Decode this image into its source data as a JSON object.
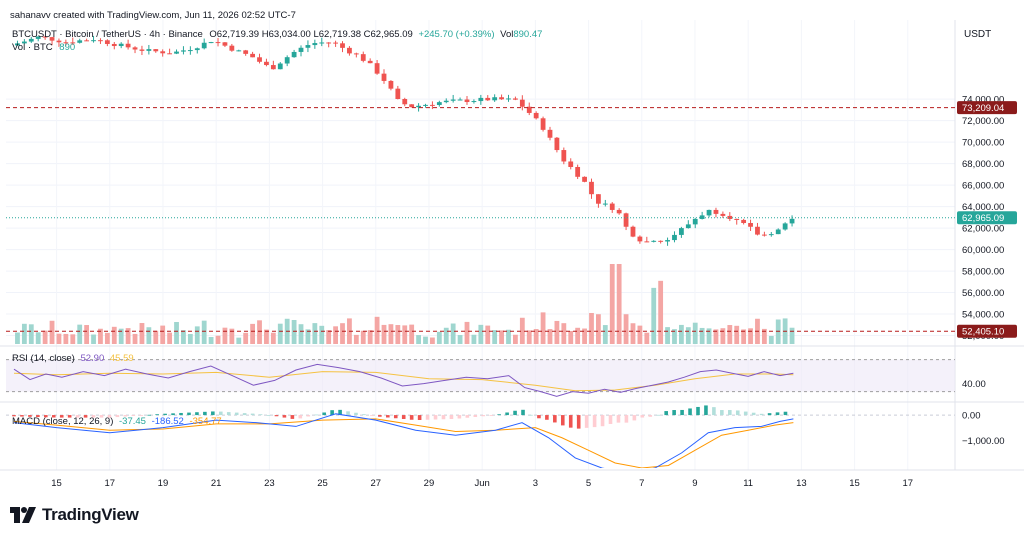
{
  "header": {
    "created": "sahanavv created with TradingView.com, Jun 11, 2026 02:52 UTC-7",
    "symbol_line": "BTCUSDT · Bitcoin / TetherUS · 4h · Binance",
    "ohlc": "O62,719.39 H63,034.00 L62,719.38 C62,965.09",
    "change": "+245.70 (+0.39%)",
    "vol_label": "Vol",
    "vol_value": "890.47",
    "vol_btc_label": "Vol · BTC",
    "vol_btc_value": "890",
    "currency": "USDT"
  },
  "rsi_panel": {
    "label": "RSI (14, close)",
    "value1": "52.90",
    "value2": "45.59",
    "axis_label": "40.00"
  },
  "macd_panel": {
    "label": "MACD (close, 12, 26, 9)",
    "value1": "-37.45",
    "value2": "-186.52",
    "value3": "-354.77",
    "axis_labels": [
      "0.00",
      "−1,000.00"
    ]
  },
  "price_badges": {
    "current": "62,965.09",
    "resistance": "73,209.04",
    "support": "52,405.10"
  },
  "brand": {
    "text": "TradingView"
  },
  "colors": {
    "up": "#26a69a",
    "down": "#ef5350",
    "vol_up": "#9fd6cf",
    "vol_down": "#f4a6a4",
    "channel": "#5b8ee6",
    "resistance_line": "#b71c1c",
    "support_line": "#b71c1c",
    "current_price": "#26a69a",
    "rsi_line": "#7e57c2",
    "rsi_ma": "#f5c242",
    "macd_line": "#2962ff",
    "signal_line": "#ff9800"
  },
  "chart_data": {
    "type": "candlestick",
    "timeframe": "4h",
    "x_tick_labels": [
      "15",
      "17",
      "19",
      "21",
      "23",
      "25",
      "27",
      "29",
      "Jun",
      "3",
      "5",
      "7",
      "9",
      "11",
      "13",
      "15",
      "17"
    ],
    "price_axis_ticks": [
      74000,
      72000,
      70000,
      68000,
      66000,
      64000,
      62000,
      60000,
      58000,
      56000,
      54000,
      52000
    ],
    "price_axis_labels": [
      "74,000.00",
      "72,000.00",
      "70,000.00",
      "68,000.00",
      "66,000.00",
      "64,000.00",
      "62,000.00",
      "60,000.00",
      "58,000.00",
      "56,000.00",
      "54,000.00",
      "52,000.00"
    ],
    "ylim": [
      51400,
      79500
    ],
    "horizontal_levels": [
      73209.04,
      52405.1
    ],
    "current_price": 62965.09,
    "channel": {
      "upper": {
        "start": [
          3.6,
          64000
        ],
        "end": [
          12.7,
          65900
        ]
      },
      "middle": {
        "start": [
          3.6,
          60200
        ],
        "end": [
          12.7,
          64000
        ]
      },
      "lower": {
        "start": [
          3.6,
          58200
        ],
        "end": [
          12.7,
          61800
        ]
      }
    },
    "close_path": [
      [
        13.4,
        79000
      ],
      [
        14.5,
        79800
      ],
      [
        15.5,
        79300
      ],
      [
        16.5,
        79600
      ],
      [
        17.5,
        79000
      ],
      [
        18.5,
        78500
      ],
      [
        19.5,
        78300
      ],
      [
        20.3,
        78800
      ],
      [
        21,
        79500
      ],
      [
        21.7,
        78700
      ],
      [
        22.5,
        77900
      ],
      [
        23.2,
        76800
      ],
      [
        24,
        78300
      ],
      [
        24.7,
        79200
      ],
      [
        25.5,
        79300
      ],
      [
        26,
        78600
      ],
      [
        26.5,
        78000
      ],
      [
        27,
        77000
      ],
      [
        27.5,
        75600
      ],
      [
        28,
        73700
      ],
      [
        28.5,
        73300
      ],
      [
        29,
        73500
      ],
      [
        29.5,
        73700
      ],
      [
        30,
        73800
      ],
      [
        31.5,
        74000
      ],
      [
        32.4,
        73900
      ],
      [
        33,
        72500
      ],
      [
        33.4,
        71400
      ],
      [
        33.8,
        69800
      ],
      [
        34.2,
        68300
      ],
      [
        34.6,
        67300
      ],
      [
        35,
        66200
      ],
      [
        35.4,
        64500
      ],
      [
        35.8,
        64100
      ],
      [
        36.2,
        63700
      ],
      [
        36.6,
        61800
      ],
      [
        37,
        61000
      ],
      [
        37.3,
        60700
      ],
      [
        37.6,
        61000
      ],
      [
        38,
        60700
      ],
      [
        38.4,
        61500
      ],
      [
        38.8,
        62200
      ],
      [
        39.2,
        63000
      ],
      [
        39.6,
        63600
      ],
      [
        40,
        63500
      ],
      [
        40.4,
        63100
      ],
      [
        40.8,
        62500
      ],
      [
        41.2,
        62000
      ],
      [
        41.6,
        61200
      ],
      [
        42,
        61600
      ],
      [
        42.4,
        62000
      ],
      [
        42.7,
        62965
      ]
    ],
    "rsi": {
      "ylim": [
        22,
        82
      ],
      "bands": [
        70,
        30
      ],
      "points": [
        [
          13.4,
          58
        ],
        [
          14,
          45
        ],
        [
          14.6,
          52
        ],
        [
          15.2,
          48
        ],
        [
          16,
          55
        ],
        [
          16.8,
          50
        ],
        [
          17.6,
          58
        ],
        [
          18.4,
          52
        ],
        [
          19.2,
          47
        ],
        [
          20,
          55
        ],
        [
          20.8,
          62
        ],
        [
          21.6,
          50
        ],
        [
          22.4,
          38
        ],
        [
          23.2,
          44
        ],
        [
          24,
          57
        ],
        [
          24.8,
          64
        ],
        [
          25.6,
          60
        ],
        [
          26.4,
          55
        ],
        [
          27.2,
          47
        ],
        [
          28,
          37
        ],
        [
          28.8,
          40
        ],
        [
          29.6,
          44
        ],
        [
          30.4,
          48
        ],
        [
          31.2,
          46
        ],
        [
          32,
          50
        ],
        [
          32.6,
          35
        ],
        [
          33.2,
          30
        ],
        [
          33.8,
          24
        ],
        [
          34.4,
          30
        ],
        [
          35,
          28
        ],
        [
          35.6,
          33
        ],
        [
          36.2,
          29
        ],
        [
          36.8,
          34
        ],
        [
          37.4,
          38
        ],
        [
          38,
          42
        ],
        [
          38.6,
          48
        ],
        [
          39.2,
          55
        ],
        [
          39.8,
          57
        ],
        [
          40.4,
          53
        ],
        [
          41,
          49
        ],
        [
          41.6,
          55
        ],
        [
          42.2,
          50
        ],
        [
          42.7,
          53
        ]
      ],
      "ma_points": [
        [
          13.4,
          53
        ],
        [
          15,
          51
        ],
        [
          17,
          53
        ],
        [
          19,
          52
        ],
        [
          21,
          54
        ],
        [
          23,
          48
        ],
        [
          25,
          55
        ],
        [
          27,
          54
        ],
        [
          29,
          46
        ],
        [
          31,
          45
        ],
        [
          33,
          38
        ],
        [
          34.5,
          31
        ],
        [
          36,
          32
        ],
        [
          37.5,
          38
        ],
        [
          39,
          46
        ],
        [
          40.5,
          52
        ],
        [
          42,
          52
        ],
        [
          42.7,
          51
        ]
      ]
    },
    "macd": {
      "ylim": [
        -2100,
        400
      ],
      "zero": 0,
      "macd_line": [
        [
          13.4,
          -300
        ],
        [
          15,
          -500
        ],
        [
          17,
          -700
        ],
        [
          19,
          -500
        ],
        [
          21,
          -200
        ],
        [
          22.5,
          -300
        ],
        [
          24,
          -450
        ],
        [
          25.5,
          50
        ],
        [
          27,
          -200
        ],
        [
          28.5,
          -600
        ],
        [
          30,
          -800
        ],
        [
          31.5,
          -600
        ],
        [
          32.5,
          -300
        ],
        [
          33.5,
          -900
        ],
        [
          34.5,
          -1700
        ],
        [
          35.5,
          -2100
        ],
        [
          36.5,
          -2300
        ],
        [
          37.5,
          -2100
        ],
        [
          38.5,
          -1500
        ],
        [
          39.5,
          -700
        ],
        [
          40.5,
          -500
        ],
        [
          41.5,
          -450
        ],
        [
          42.2,
          -250
        ],
        [
          42.7,
          -150
        ]
      ],
      "signal_line": [
        [
          13.4,
          -250
        ],
        [
          15,
          -400
        ],
        [
          17,
          -600
        ],
        [
          19,
          -550
        ],
        [
          21,
          -350
        ],
        [
          23,
          -350
        ],
        [
          25,
          -200
        ],
        [
          27,
          -150
        ],
        [
          28.5,
          -400
        ],
        [
          30,
          -650
        ],
        [
          31.5,
          -600
        ],
        [
          33,
          -500
        ],
        [
          34,
          -900
        ],
        [
          35,
          -1400
        ],
        [
          36,
          -1900
        ],
        [
          37,
          -2100
        ],
        [
          38,
          -2000
        ],
        [
          39,
          -1400
        ],
        [
          40,
          -800
        ],
        [
          41,
          -600
        ],
        [
          42,
          -400
        ],
        [
          42.7,
          -300
        ]
      ]
    }
  }
}
